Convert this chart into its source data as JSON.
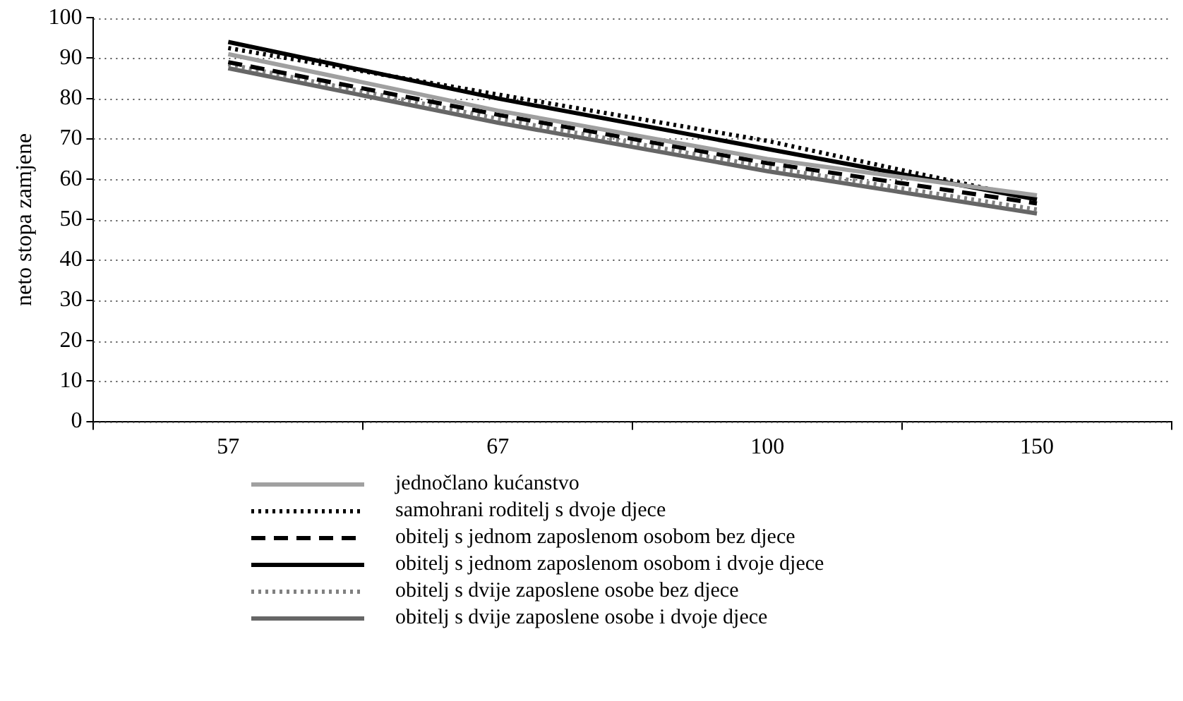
{
  "chart_data": {
    "type": "line",
    "ylabel": "neto stopa zamjene",
    "categories": [
      "57",
      "67",
      "100",
      "150"
    ],
    "ylim": [
      0,
      100
    ],
    "yticks": [
      0,
      10,
      20,
      30,
      40,
      50,
      60,
      70,
      80,
      90,
      100
    ],
    "grid": "y",
    "legend": "bottom",
    "marker": "none",
    "series": [
      {
        "name": "jednočlano kućanstvo",
        "color": "#a0a0a0",
        "line_style": "solid",
        "values": [
          91,
          77,
          65,
          56
        ]
      },
      {
        "name": "samohrani roditelj s dvoje djece",
        "color": "#000000",
        "line_style": "dotted",
        "values": [
          92.5,
          81,
          69.5,
          55
        ]
      },
      {
        "name": "obitelj s jednom zaposlenom osobom bez djece",
        "color": "#000000",
        "line_style": "dashed",
        "values": [
          89,
          76,
          64,
          54
        ]
      },
      {
        "name": "obitelj s jednom zaposlenom osobom i dvoje djece",
        "color": "#000000",
        "line_style": "solid",
        "values": [
          94,
          80,
          67.5,
          55
        ]
      },
      {
        "name": "obitelj s dvije zaposlene osobe bez djece",
        "color": "#808080",
        "line_style": "dotted",
        "values": [
          88.5,
          75,
          63,
          52.5
        ]
      },
      {
        "name": "obitelj s dvije zaposlene osobe i dvoje djece",
        "color": "#666666",
        "line_style": "solid",
        "values": [
          87.5,
          74,
          62,
          51.5
        ]
      }
    ]
  }
}
